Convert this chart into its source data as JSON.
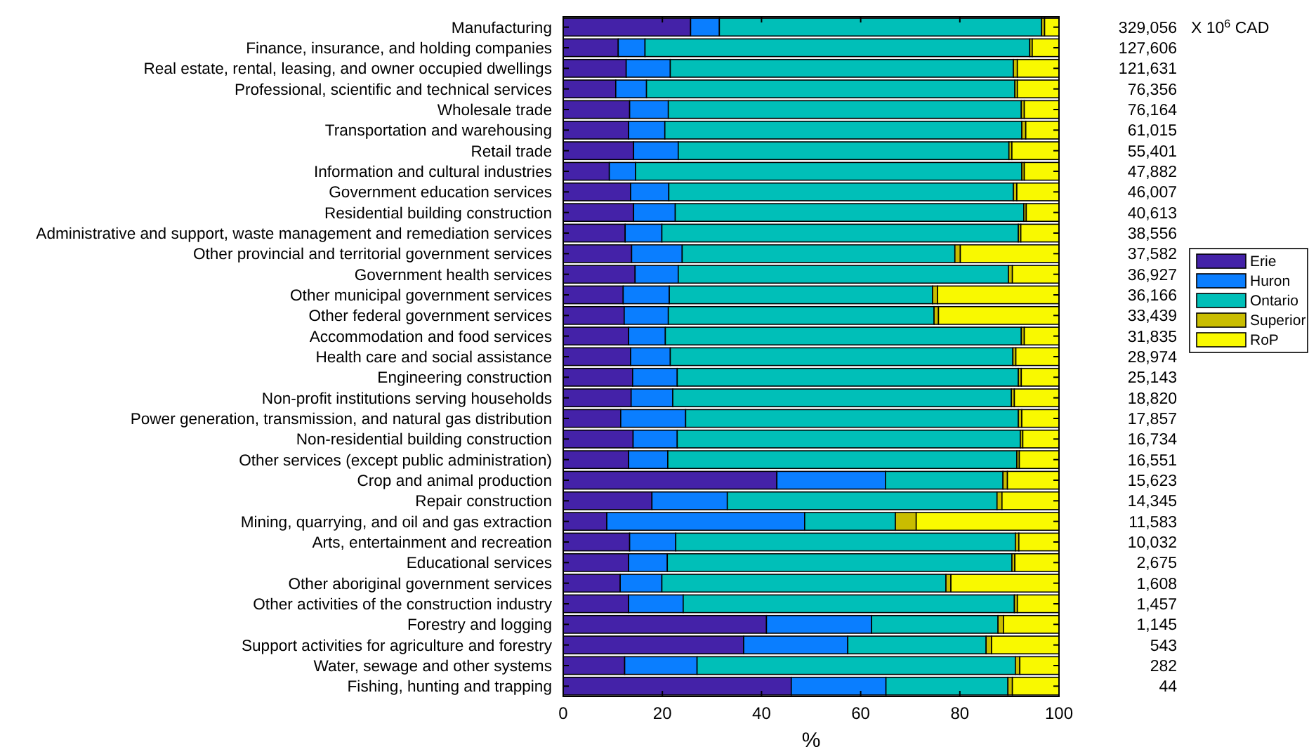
{
  "chart_data": {
    "type": "bar",
    "orientation": "horizontal",
    "stacked": true,
    "xlabel": "%",
    "xlim": [
      0,
      100
    ],
    "xticks": [
      0,
      20,
      40,
      60,
      80,
      100
    ],
    "grid": false,
    "legend": "right",
    "annotations": [
      "329,056",
      "127,606",
      "121,631",
      "76,356",
      "76,164",
      "61,015",
      "55,401",
      "47,882",
      "46,007",
      "40,613",
      "38,556",
      "37,582",
      "36,927",
      "36,166",
      "33,439",
      "31,835",
      "28,974",
      "25,143",
      "18,820",
      "17,857",
      "16,734",
      "16,551",
      "15,623",
      "14,345",
      "11,583",
      "10,032",
      "2,675",
      "1,608",
      "1,457",
      "1,145",
      "543",
      "282",
      "44",
      "X 10$^{6}$ CAD"
    ],
    "categories": [
      "Manufacturing",
      "Finance, insurance, and holding companies",
      "Real estate, rental, leasing, and owner occupied dwellings",
      "Professional, scientific and technical services",
      "Wholesale trade",
      "Transportation and warehousing",
      "Retail trade",
      "Information and cultural industries",
      "Government education services",
      "Residential building construction",
      "Administrative and support, waste management and remediation services",
      "Other provincial and territorial government services",
      "Government health services",
      "Other municipal government services",
      "Other federal government services",
      "Accommodation and food services",
      "Health care and social assistance",
      "Engineering construction",
      "Non-profit institutions serving households",
      "Power generation, transmission, and natural gas distribution",
      "Non-residential building construction",
      "Other services (except public administration)",
      "Crop and animal production",
      "Repair construction",
      "Mining, quarrying, and oil and gas extraction",
      "Arts, entertainment and recreation",
      "Educational services",
      "Other aboriginal government services",
      "Other activities of the construction industry",
      "Forestry and logging",
      "Support activities for agriculture and forestry",
      "Water, sewage and other systems",
      "Fishing, hunting and trapping"
    ],
    "series": [
      {
        "name": "Erie",
        "color": "#4422a8",
        "values": [
          25.7,
          11.1,
          12.7,
          10.6,
          13.4,
          13.2,
          14.2,
          9.3,
          13.6,
          14.2,
          12.5,
          13.8,
          14.5,
          12.1,
          12.3,
          13.2,
          13.6,
          14.0,
          13.7,
          11.6,
          14.1,
          13.2,
          43.1,
          17.9,
          8.8,
          13.4,
          13.2,
          11.5,
          13.2,
          41.0,
          36.4,
          12.4,
          46.0
        ]
      },
      {
        "name": "Huron",
        "color": "#0a7eff",
        "values": [
          5.8,
          5.4,
          8.9,
          6.2,
          7.8,
          7.3,
          9.0,
          5.3,
          7.7,
          8.4,
          7.4,
          10.2,
          8.7,
          9.3,
          8.9,
          7.4,
          8.0,
          9.0,
          8.4,
          13.1,
          8.9,
          7.9,
          21.9,
          15.2,
          39.9,
          9.3,
          7.8,
          8.4,
          11.0,
          21.2,
          21.0,
          14.6,
          19.1
        ]
      },
      {
        "name": "Ontario",
        "color": "#00bfb8",
        "values": [
          65.0,
          77.6,
          69.2,
          74.3,
          71.2,
          72.0,
          66.7,
          77.9,
          69.5,
          70.3,
          71.9,
          55.0,
          66.6,
          53.1,
          53.6,
          71.8,
          69.1,
          68.8,
          68.3,
          67.1,
          69.2,
          70.4,
          23.7,
          54.4,
          18.3,
          68.5,
          69.5,
          57.3,
          66.8,
          25.5,
          27.9,
          64.2,
          24.6
        ]
      },
      {
        "name": "Superior",
        "color": "#c9bd00",
        "values": [
          0.6,
          0.5,
          0.8,
          0.5,
          0.6,
          0.8,
          0.6,
          0.5,
          0.7,
          0.5,
          0.5,
          1.1,
          0.8,
          1.0,
          0.9,
          0.6,
          0.6,
          0.6,
          0.6,
          0.7,
          0.5,
          0.5,
          0.9,
          1.0,
          4.2,
          0.7,
          0.6,
          1.0,
          0.6,
          1.1,
          1.1,
          0.9,
          0.9
        ]
      },
      {
        "name": "RoP",
        "color": "#f9f900",
        "values": [
          2.9,
          5.4,
          8.4,
          8.4,
          7.0,
          6.7,
          9.5,
          7.0,
          8.5,
          6.6,
          7.7,
          19.9,
          9.4,
          24.5,
          24.3,
          7.0,
          8.7,
          7.6,
          9.0,
          7.5,
          7.3,
          8.0,
          10.4,
          11.5,
          28.8,
          8.1,
          8.9,
          21.8,
          8.4,
          11.2,
          13.6,
          7.9,
          9.4
        ]
      }
    ]
  }
}
